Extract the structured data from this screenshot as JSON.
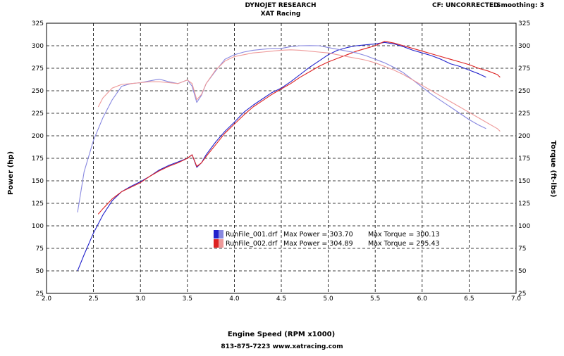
{
  "header": {
    "title": "DYNOJET RESEARCH",
    "subtitle": "XAT Racing",
    "correction": "CF: UNCORRECTED",
    "smoothing": "Smoothing: 3"
  },
  "footer": {
    "phone_web": "813-875-7223  www.xatracing.com"
  },
  "legend": [
    {
      "file": "RunFile_001.drf",
      "power": "Max Power = 303.70",
      "torque": "Max Torque = 300.13",
      "color": "#2222cc"
    },
    {
      "file": "RunFile_002.drf",
      "power": "Max Power = 304.89",
      "torque": "Max Torque = 295.43",
      "color": "#dd2222"
    }
  ],
  "chart_data": {
    "type": "line",
    "xlabel": "Engine Speed (RPM x1000)",
    "ylabel": "Power (hp)",
    "y2label": "Torque (ft-lbs)",
    "xlim": [
      2.0,
      7.0
    ],
    "ylim": [
      25,
      325
    ],
    "y2lim": [
      25,
      325
    ],
    "x_ticks": [
      "2.0",
      "2.5",
      "3.0",
      "3.5",
      "4.0",
      "4.5",
      "5.0",
      "5.5",
      "6.0",
      "6.5",
      "7.0"
    ],
    "y_ticks": [
      "25",
      "50",
      "75",
      "100",
      "125",
      "150",
      "175",
      "200",
      "225",
      "250",
      "275",
      "300",
      "325"
    ],
    "grid": true,
    "series": [
      {
        "name": "RunFile_001.drf",
        "measure": "power",
        "color": "#2222cc",
        "x": [
          2.33,
          2.4,
          2.5,
          2.6,
          2.7,
          2.8,
          2.9,
          3.0,
          3.1,
          3.2,
          3.3,
          3.4,
          3.5,
          3.55,
          3.6,
          3.65,
          3.7,
          3.8,
          3.9,
          4.0,
          4.1,
          4.2,
          4.3,
          4.4,
          4.5,
          4.6,
          4.7,
          4.8,
          4.9,
          5.0,
          5.1,
          5.2,
          5.3,
          5.4,
          5.5,
          5.6,
          5.7,
          5.8,
          5.9,
          6.0,
          6.1,
          6.2,
          6.3,
          6.4,
          6.5,
          6.6,
          6.68
        ],
        "y": [
          50,
          68,
          92,
          112,
          128,
          138,
          144,
          149,
          155,
          162,
          167,
          171,
          175,
          179,
          165,
          170,
          179,
          193,
          205,
          215,
          226,
          234,
          241,
          248,
          253,
          260,
          268,
          276,
          283,
          290,
          295,
          298,
          300,
          301,
          302,
          303.7,
          302,
          299,
          295,
          292,
          289,
          285,
          280,
          277,
          273,
          269,
          265
        ]
      },
      {
        "name": "RunFile_002.drf",
        "measure": "power",
        "color": "#dd2222",
        "x": [
          2.55,
          2.6,
          2.7,
          2.8,
          2.9,
          3.0,
          3.1,
          3.2,
          3.3,
          3.4,
          3.5,
          3.55,
          3.6,
          3.65,
          3.7,
          3.8,
          3.9,
          4.0,
          4.1,
          4.2,
          4.3,
          4.4,
          4.5,
          4.6,
          4.7,
          4.8,
          4.9,
          5.0,
          5.1,
          5.2,
          5.3,
          5.4,
          5.5,
          5.6,
          5.7,
          5.8,
          5.9,
          6.0,
          6.1,
          6.2,
          6.3,
          6.4,
          6.5,
          6.6,
          6.7,
          6.8,
          6.83
        ],
        "y": [
          113,
          119,
          130,
          138,
          143,
          148,
          155,
          161,
          166,
          170,
          175,
          179,
          166,
          170,
          177,
          190,
          203,
          213,
          223,
          232,
          239,
          246,
          252,
          258,
          265,
          271,
          277,
          282,
          286,
          290,
          294,
          297,
          300,
          304.89,
          303,
          300,
          297,
          294,
          291,
          288,
          285,
          282,
          279,
          275,
          272,
          268,
          265
        ]
      },
      {
        "name": "RunFile_001.drf",
        "measure": "torque",
        "color": "#8888e0",
        "x": [
          2.33,
          2.4,
          2.5,
          2.6,
          2.7,
          2.8,
          2.9,
          3.0,
          3.1,
          3.2,
          3.3,
          3.4,
          3.5,
          3.55,
          3.6,
          3.65,
          3.7,
          3.8,
          3.9,
          4.0,
          4.1,
          4.2,
          4.3,
          4.4,
          4.5,
          4.6,
          4.7,
          4.8,
          4.9,
          5.0,
          5.1,
          5.2,
          5.3,
          5.4,
          5.5,
          5.6,
          5.7,
          5.8,
          5.9,
          6.0,
          6.1,
          6.2,
          6.3,
          6.4,
          6.5,
          6.6,
          6.68
        ],
        "y": [
          115,
          160,
          195,
          220,
          240,
          255,
          258,
          259,
          261,
          263,
          260,
          258,
          262,
          255,
          237,
          245,
          258,
          272,
          285,
          290,
          293,
          295,
          296,
          297,
          297,
          299,
          300,
          300.13,
          300,
          298,
          296,
          294,
          292,
          289,
          285,
          281,
          276,
          270,
          262,
          254,
          246,
          239,
          232,
          225,
          218,
          212,
          208
        ]
      },
      {
        "name": "RunFile_002.drf",
        "measure": "torque",
        "color": "#ee9999",
        "x": [
          2.55,
          2.6,
          2.7,
          2.8,
          2.9,
          3.0,
          3.1,
          3.2,
          3.3,
          3.4,
          3.5,
          3.55,
          3.6,
          3.65,
          3.7,
          3.8,
          3.9,
          4.0,
          4.1,
          4.2,
          4.3,
          4.4,
          4.5,
          4.6,
          4.7,
          4.8,
          4.9,
          5.0,
          5.1,
          5.2,
          5.3,
          5.4,
          5.5,
          5.6,
          5.7,
          5.8,
          5.9,
          6.0,
          6.1,
          6.2,
          6.3,
          6.4,
          6.5,
          6.6,
          6.7,
          6.8,
          6.83
        ],
        "y": [
          232,
          242,
          253,
          257,
          258,
          259,
          260,
          260,
          259,
          258,
          262,
          258,
          240,
          246,
          258,
          273,
          283,
          288,
          290,
          292,
          293,
          294,
          295,
          295.43,
          295,
          294,
          293,
          292,
          290,
          288,
          286,
          284,
          281,
          277,
          273,
          268,
          262,
          256,
          250,
          244,
          238,
          232,
          226,
          220,
          214,
          208,
          205
        ]
      }
    ]
  }
}
